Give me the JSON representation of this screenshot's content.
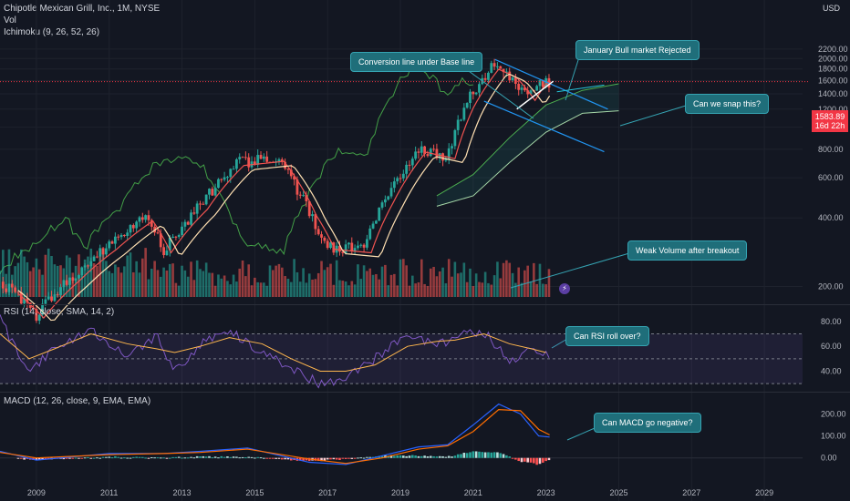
{
  "header": {
    "symbol": "Chipotle Mexican Grill, Inc., 1M, NYSE",
    "vol": "Vol",
    "ichimoku": "Ichimoku (9, 26, 52, 26)",
    "currency": "USD"
  },
  "price_tag": {
    "price": "1583.89",
    "countdown": "16d 22h"
  },
  "panes": {
    "rsi_label": "RSI (14, close, SMA, 14, 2)",
    "macd_label": "MACD (12, 26, close, 9, EMA, EMA)"
  },
  "callouts": {
    "conversion": "Conversion line under Base line",
    "january": "January Bull market Rejected",
    "snap": "Can we snap this?",
    "weak_volume": "Weak Volume after breakout",
    "rsi": "Can RSI roll over?",
    "macd": "Can MACD go negative?"
  },
  "colors": {
    "bg": "#131722",
    "up": "#26a69a",
    "down": "#ef5350",
    "rsi": "#7e57c2",
    "macd": "#2962ff",
    "signal": "#ff6d00",
    "callout": "#1f6e7a"
  },
  "chart_data": [
    {
      "type": "candlestick",
      "title": "Chipotle Mexican Grill, Inc., 1M, NYSE",
      "yscale": "log",
      "ylim": [
        180,
        2500
      ],
      "xlim": [
        2008,
        2030
      ],
      "x_ticks": [
        "2009",
        "2011",
        "2013",
        "2015",
        "2017",
        "2019",
        "2021",
        "2023",
        "2025",
        "2027",
        "2029"
      ],
      "y_ticks": [
        "200.00",
        "400.00",
        "600.00",
        "800.00",
        "1000.00",
        "1200.00",
        "1400.00",
        "1600.00",
        "1800.00",
        "2000.00",
        "2200.00"
      ],
      "last_price": 1583.89,
      "price_path": [
        [
          2008.0,
          210
        ],
        [
          2009.0,
          150
        ],
        [
          2010.0,
          220
        ],
        [
          2011.0,
          300
        ],
        [
          2012.0,
          400
        ],
        [
          2012.5,
          290
        ],
        [
          2013.5,
          450
        ],
        [
          2014.5,
          700
        ],
        [
          2015.6,
          730
        ],
        [
          2016.5,
          420
        ],
        [
          2017.0,
          300
        ],
        [
          2018.0,
          290
        ],
        [
          2018.6,
          480
        ],
        [
          2019.5,
          800
        ],
        [
          2020.3,
          750
        ],
        [
          2020.8,
          1250
        ],
        [
          2021.5,
          1850
        ],
        [
          2022.0,
          1700
        ],
        [
          2022.5,
          1350
        ],
        [
          2022.8,
          1600
        ],
        [
          2023.1,
          1583.89
        ]
      ],
      "ichimoku_cloud": [
        [
          2020.0,
          450,
          500
        ],
        [
          2021.0,
          500,
          620
        ],
        [
          2022.0,
          700,
          900
        ],
        [
          2023.0,
          950,
          1250
        ],
        [
          2024.0,
          1150,
          1450
        ],
        [
          2025.0,
          1180,
          1550
        ]
      ]
    },
    {
      "type": "line",
      "title": "RSI (14, close, SMA, 14, 2)",
      "ylim": [
        25,
        85
      ],
      "y_ticks": [
        "40.00",
        "60.00",
        "80.00"
      ],
      "series": [
        {
          "values": [
            [
              2008.0,
              82
            ],
            [
              2008.8,
              38
            ],
            [
              2009.5,
              60
            ],
            [
              2010.5,
              72
            ],
            [
              2011.5,
              52
            ],
            [
              2012.3,
              68
            ],
            [
              2012.8,
              40
            ],
            [
              2013.5,
              62
            ],
            [
              2014.3,
              72
            ],
            [
              2015.2,
              55
            ],
            [
              2016.0,
              42
            ],
            [
              2016.8,
              30
            ],
            [
              2017.5,
              35
            ],
            [
              2018.3,
              50
            ],
            [
              2019.2,
              70
            ],
            [
              2020.0,
              60
            ],
            [
              2020.5,
              68
            ],
            [
              2021.3,
              72
            ],
            [
              2022.0,
              48
            ],
            [
              2022.6,
              58
            ],
            [
              2023.0,
              52
            ]
          ]
        },
        {
          "values": [
            [
              2008.0,
              70
            ],
            [
              2008.8,
              50
            ],
            [
              2009.5,
              58
            ],
            [
              2010.5,
              70
            ],
            [
              2011.5,
              62
            ],
            [
              2012.3,
              58
            ],
            [
              2012.8,
              55
            ],
            [
              2013.5,
              60
            ],
            [
              2014.3,
              67
            ],
            [
              2015.2,
              62
            ],
            [
              2016.0,
              50
            ],
            [
              2016.8,
              40
            ],
            [
              2017.5,
              40
            ],
            [
              2018.3,
              45
            ],
            [
              2019.2,
              60
            ],
            [
              2020.0,
              64
            ],
            [
              2020.5,
              65
            ],
            [
              2021.3,
              70
            ],
            [
              2022.0,
              62
            ],
            [
              2022.6,
              58
            ],
            [
              2023.0,
              55
            ]
          ]
        }
      ]
    },
    {
      "type": "line",
      "title": "MACD (12, 26, close, 9, EMA, EMA)",
      "ylim": [
        -80,
        260
      ],
      "y_ticks": [
        "0.00",
        "100.00",
        "200.00"
      ],
      "series": [
        {
          "values": [
            [
              2008.0,
              30
            ],
            [
              2009.0,
              -10
            ],
            [
              2011.0,
              20
            ],
            [
              2012.5,
              20
            ],
            [
              2013.5,
              30
            ],
            [
              2014.8,
              45
            ],
            [
              2016.5,
              -20
            ],
            [
              2017.5,
              -30
            ],
            [
              2018.5,
              10
            ],
            [
              2019.5,
              50
            ],
            [
              2020.3,
              60
            ],
            [
              2021.0,
              150
            ],
            [
              2021.7,
              245
            ],
            [
              2022.3,
              200
            ],
            [
              2022.8,
              100
            ],
            [
              2023.1,
              95
            ]
          ]
        },
        {
          "values": [
            [
              2008.0,
              25
            ],
            [
              2009.0,
              0
            ],
            [
              2011.0,
              15
            ],
            [
              2012.5,
              20
            ],
            [
              2013.5,
              25
            ],
            [
              2014.8,
              40
            ],
            [
              2016.5,
              -5
            ],
            [
              2017.5,
              -25
            ],
            [
              2018.5,
              0
            ],
            [
              2019.5,
              40
            ],
            [
              2020.3,
              55
            ],
            [
              2021.0,
              120
            ],
            [
              2021.7,
              220
            ],
            [
              2022.3,
              215
            ],
            [
              2022.8,
              130
            ],
            [
              2023.1,
              105
            ]
          ]
        }
      ]
    }
  ]
}
